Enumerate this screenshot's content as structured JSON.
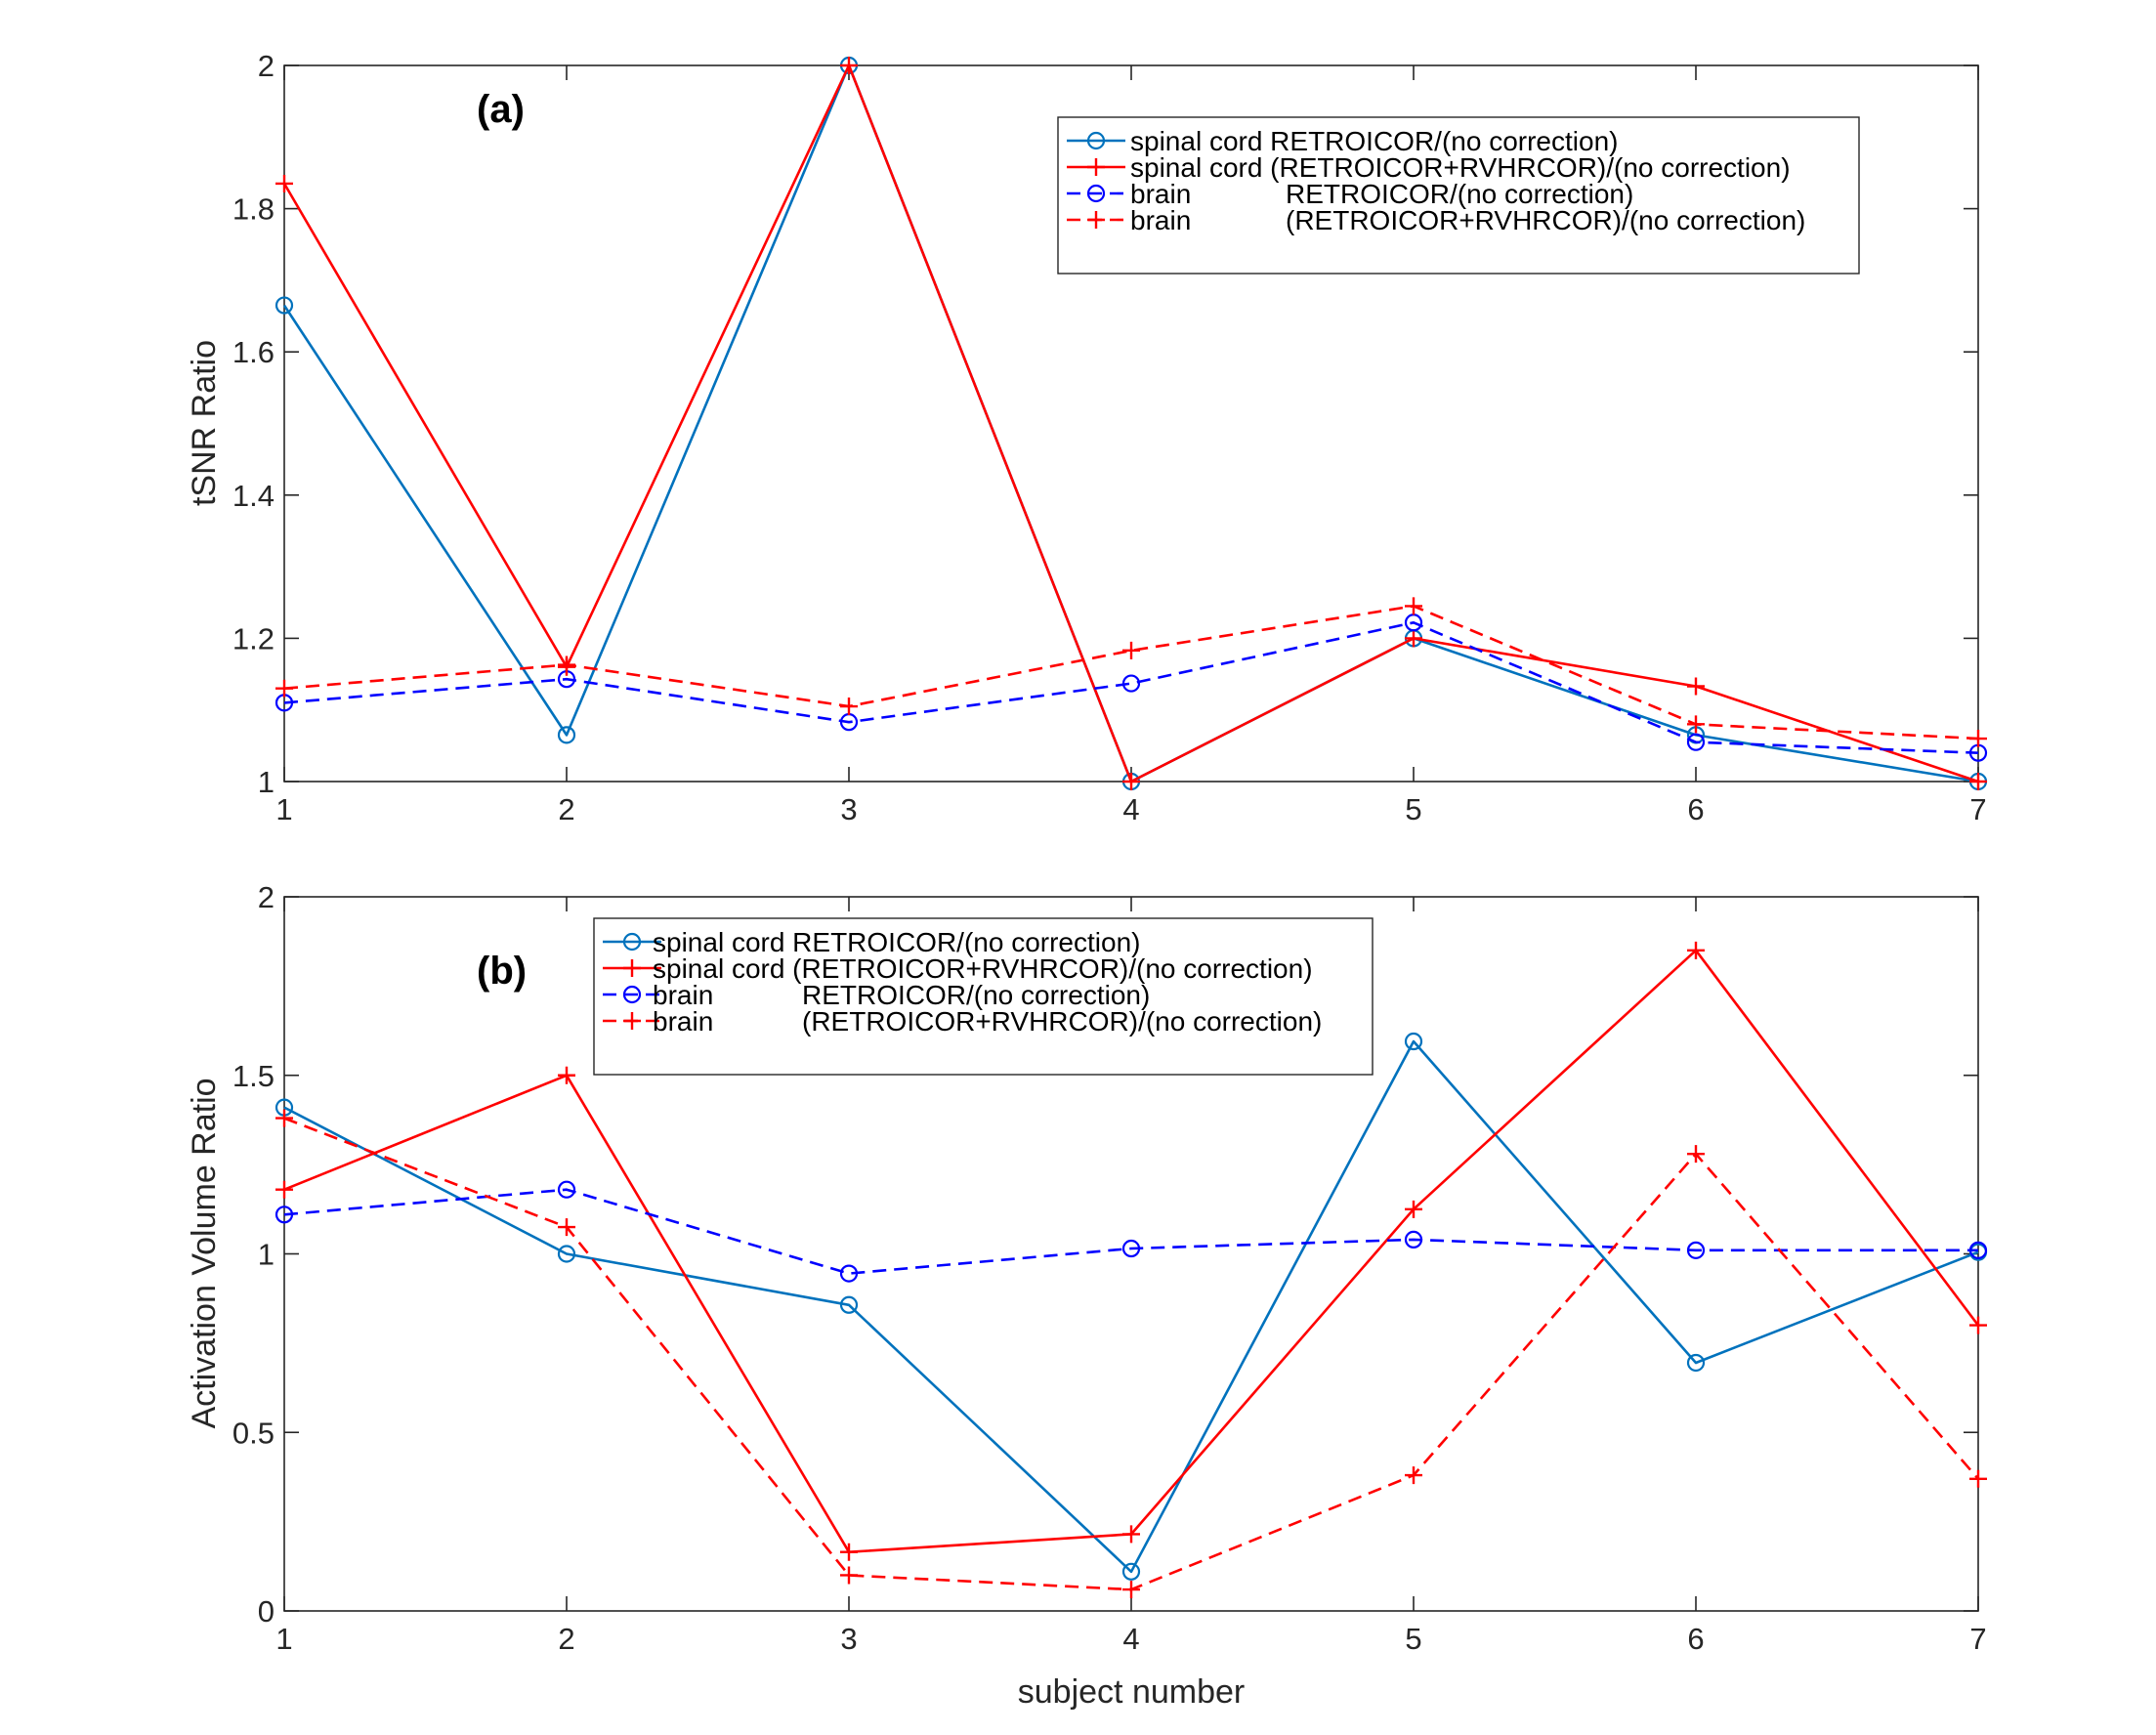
{
  "chart_data": [
    {
      "id": "a",
      "type": "line",
      "panel_label": "(a)",
      "title": "",
      "xlabel": "",
      "ylabel": "tSNR Ratio",
      "x": [
        1,
        2,
        3,
        4,
        5,
        6,
        7
      ],
      "xlim": [
        1,
        7
      ],
      "ylim": [
        1,
        2
      ],
      "xticks": [
        1,
        2,
        3,
        4,
        5,
        6,
        7
      ],
      "xtick_labels": [
        "1",
        "2",
        "3",
        "4",
        "5",
        "6",
        "7"
      ],
      "yticks": [
        1,
        1.2,
        1.4,
        1.6,
        1.8,
        2
      ],
      "ytick_labels": [
        "1",
        "1.2",
        "1.4",
        "1.6",
        "1.8",
        "2"
      ],
      "grid": false,
      "legend_position": "top-right",
      "series": [
        {
          "name": "spinal cord RETROICOR/(no correction)",
          "legend_parts": [
            "spinal cord RETROICOR/(no correction)"
          ],
          "color": "#0072BD",
          "dash": "solid",
          "marker": "circle",
          "values": [
            1.665,
            1.065,
            2.0,
            1.0,
            1.2,
            1.065,
            1.0
          ]
        },
        {
          "name": "spinal cord (RETROICOR+RVHRCOR)/(no correction)",
          "legend_parts": [
            "spinal cord (RETROICOR+RVHRCOR)/(no correction)"
          ],
          "color": "#FF0000",
          "dash": "solid",
          "marker": "plus",
          "values": [
            1.835,
            1.16,
            2.0,
            1.0,
            1.2,
            1.133,
            1.0
          ]
        },
        {
          "name": "brain RETROICOR/(no correction)",
          "legend_parts": [
            "brain",
            "RETROICOR/(no correction)"
          ],
          "color": "#0000FF",
          "dash": "dashed",
          "marker": "circle",
          "values": [
            1.11,
            1.143,
            1.083,
            1.137,
            1.222,
            1.055,
            1.04
          ]
        },
        {
          "name": "brain (RETROICOR+RVHRCOR)/(no correction)",
          "legend_parts": [
            "brain",
            "(RETROICOR+RVHRCOR)/(no correction)"
          ],
          "color": "#FF0000",
          "dash": "dashed",
          "marker": "plus",
          "values": [
            1.13,
            1.163,
            1.105,
            1.183,
            1.245,
            1.08,
            1.06
          ]
        }
      ]
    },
    {
      "id": "b",
      "type": "line",
      "panel_label": "(b)",
      "title": "",
      "xlabel": "subject number",
      "ylabel": "Activation Volume Ratio",
      "x": [
        1,
        2,
        3,
        4,
        5,
        6,
        7
      ],
      "xlim": [
        1,
        7
      ],
      "ylim": [
        0,
        2
      ],
      "xticks": [
        1,
        2,
        3,
        4,
        5,
        6,
        7
      ],
      "xtick_labels": [
        "1",
        "2",
        "3",
        "4",
        "5",
        "6",
        "7"
      ],
      "yticks": [
        0,
        0.5,
        1,
        1.5,
        2
      ],
      "ytick_labels": [
        "0",
        "0.5",
        "1",
        "1.5",
        "2"
      ],
      "grid": false,
      "legend_position": "top-center",
      "series": [
        {
          "name": "spinal cord RETROICOR/(no correction)",
          "legend_parts": [
            "spinal cord RETROICOR/(no correction)"
          ],
          "color": "#0072BD",
          "dash": "solid",
          "marker": "circle",
          "values": [
            1.41,
            1.0,
            0.857,
            0.11,
            1.595,
            0.695,
            1.005
          ]
        },
        {
          "name": "spinal cord (RETROICOR+RVHRCOR)/(no correction)",
          "legend_parts": [
            "spinal cord (RETROICOR+RVHRCOR)/(no correction)"
          ],
          "color": "#FF0000",
          "dash": "solid",
          "marker": "plus",
          "values": [
            1.18,
            1.5,
            0.165,
            0.215,
            1.125,
            1.85,
            0.8
          ]
        },
        {
          "name": "brain RETROICOR/(no correction)",
          "legend_parts": [
            "brain",
            "RETROICOR/(no correction)"
          ],
          "color": "#0000FF",
          "dash": "dashed",
          "marker": "circle",
          "values": [
            1.11,
            1.18,
            0.945,
            1.015,
            1.04,
            1.01,
            1.01
          ]
        },
        {
          "name": "brain (RETROICOR+RVHRCOR)/(no correction)",
          "legend_parts": [
            "brain",
            "(RETROICOR+RVHRCOR)/(no correction)"
          ],
          "color": "#FF0000",
          "dash": "dashed",
          "marker": "plus",
          "values": [
            1.38,
            1.075,
            0.1,
            0.06,
            0.38,
            1.28,
            0.37
          ]
        }
      ]
    }
  ]
}
